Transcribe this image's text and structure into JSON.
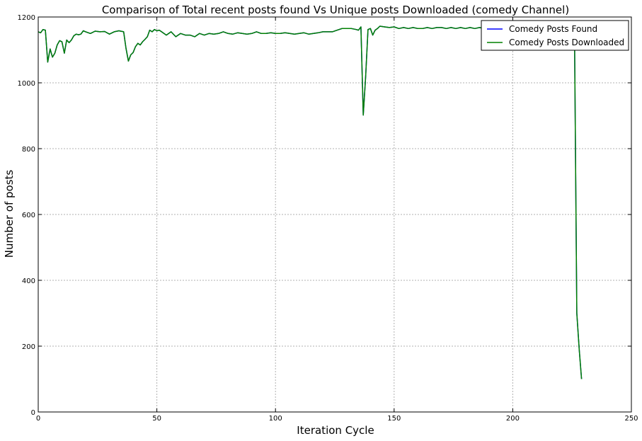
{
  "chart_data": {
    "type": "line",
    "title": "Comparison of Total recent posts found Vs Unique posts Downloaded (comedy Channel)",
    "xlabel": "Iteration Cycle",
    "ylabel": "Number of posts",
    "xlim": [
      0,
      250
    ],
    "ylim": [
      0,
      1200
    ],
    "xticks": [
      0,
      50,
      100,
      150,
      200,
      250
    ],
    "yticks": [
      0,
      200,
      400,
      600,
      800,
      1000,
      1200
    ],
    "grid": true,
    "legend_position": "top-right",
    "series": [
      {
        "name": "Comedy Posts Found",
        "color": "#0000ff",
        "x": [
          0,
          1,
          2,
          3,
          4,
          5,
          6,
          7,
          8,
          9,
          10,
          11,
          12,
          13,
          14,
          15,
          16,
          17,
          18,
          19,
          20,
          22,
          24,
          26,
          28,
          30,
          32,
          34,
          36,
          37,
          38,
          39,
          40,
          41,
          42,
          43,
          44,
          45,
          46,
          47,
          48,
          49,
          50,
          51,
          52,
          54,
          56,
          58,
          60,
          62,
          64,
          66,
          68,
          70,
          72,
          74,
          76,
          78,
          80,
          82,
          84,
          86,
          88,
          90,
          92,
          94,
          96,
          98,
          100,
          102,
          104,
          106,
          108,
          110,
          112,
          114,
          116,
          118,
          120,
          122,
          124,
          126,
          128,
          130,
          132,
          134,
          135,
          136,
          137,
          138,
          139,
          140,
          141,
          142,
          143,
          144,
          146,
          148,
          150,
          152,
          154,
          156,
          158,
          160,
          162,
          164,
          166,
          168,
          170,
          172,
          174,
          176,
          178,
          180,
          182,
          184,
          186,
          188,
          190,
          192,
          194,
          196,
          198,
          200,
          202,
          204,
          206,
          208,
          210,
          212,
          214,
          216,
          218,
          220,
          222,
          224,
          226,
          227,
          228,
          229
        ],
        "y": [
          1155,
          1152,
          1162,
          1160,
          1063,
          1103,
          1078,
          1090,
          1115,
          1128,
          1125,
          1090,
          1130,
          1122,
          1130,
          1143,
          1148,
          1146,
          1148,
          1158,
          1155,
          1150,
          1157,
          1155,
          1156,
          1148,
          1155,
          1158,
          1155,
          1105,
          1066,
          1085,
          1092,
          1110,
          1120,
          1115,
          1125,
          1132,
          1140,
          1160,
          1155,
          1162,
          1158,
          1160,
          1155,
          1145,
          1155,
          1140,
          1150,
          1145,
          1145,
          1140,
          1150,
          1145,
          1150,
          1148,
          1150,
          1155,
          1150,
          1148,
          1152,
          1150,
          1148,
          1150,
          1155,
          1150,
          1150,
          1152,
          1150,
          1150,
          1152,
          1150,
          1148,
          1150,
          1152,
          1148,
          1150,
          1152,
          1155,
          1155,
          1155,
          1160,
          1165,
          1165,
          1165,
          1162,
          1160,
          1170,
          902,
          1020,
          1162,
          1165,
          1145,
          1160,
          1165,
          1172,
          1170,
          1168,
          1170,
          1165,
          1168,
          1165,
          1168,
          1165,
          1165,
          1168,
          1165,
          1168,
          1168,
          1165,
          1168,
          1165,
          1168,
          1165,
          1168,
          1165,
          1168,
          1165,
          1168,
          1165,
          1168,
          1165,
          1168,
          1165,
          1168,
          1165,
          1168,
          1165,
          1168,
          1165,
          1168,
          1165,
          1168,
          1165,
          1168,
          1165,
          1165,
          300,
          190,
          100
        ]
      },
      {
        "name": "Comedy Posts Downloaded",
        "color": "#008000",
        "x": [
          0,
          1,
          2,
          3,
          4,
          5,
          6,
          7,
          8,
          9,
          10,
          11,
          12,
          13,
          14,
          15,
          16,
          17,
          18,
          19,
          20,
          22,
          24,
          26,
          28,
          30,
          32,
          34,
          36,
          37,
          38,
          39,
          40,
          41,
          42,
          43,
          44,
          45,
          46,
          47,
          48,
          49,
          50,
          51,
          52,
          54,
          56,
          58,
          60,
          62,
          64,
          66,
          68,
          70,
          72,
          74,
          76,
          78,
          80,
          82,
          84,
          86,
          88,
          90,
          92,
          94,
          96,
          98,
          100,
          102,
          104,
          106,
          108,
          110,
          112,
          114,
          116,
          118,
          120,
          122,
          124,
          126,
          128,
          130,
          132,
          134,
          135,
          136,
          137,
          138,
          139,
          140,
          141,
          142,
          143,
          144,
          146,
          148,
          150,
          152,
          154,
          156,
          158,
          160,
          162,
          164,
          166,
          168,
          170,
          172,
          174,
          176,
          178,
          180,
          182,
          184,
          186,
          188,
          190,
          192,
          194,
          196,
          198,
          200,
          202,
          204,
          206,
          208,
          210,
          212,
          214,
          216,
          218,
          220,
          222,
          224,
          226,
          227,
          228,
          229
        ],
        "y": [
          1155,
          1152,
          1162,
          1160,
          1063,
          1103,
          1078,
          1090,
          1115,
          1128,
          1125,
          1090,
          1130,
          1122,
          1130,
          1143,
          1148,
          1146,
          1148,
          1158,
          1155,
          1150,
          1157,
          1155,
          1156,
          1148,
          1155,
          1158,
          1155,
          1105,
          1066,
          1085,
          1092,
          1110,
          1120,
          1115,
          1125,
          1132,
          1140,
          1160,
          1155,
          1162,
          1158,
          1160,
          1155,
          1145,
          1155,
          1140,
          1150,
          1145,
          1145,
          1140,
          1150,
          1145,
          1150,
          1148,
          1150,
          1155,
          1150,
          1148,
          1152,
          1150,
          1148,
          1150,
          1155,
          1150,
          1150,
          1152,
          1150,
          1150,
          1152,
          1150,
          1148,
          1150,
          1152,
          1148,
          1150,
          1152,
          1155,
          1155,
          1155,
          1160,
          1165,
          1165,
          1165,
          1162,
          1160,
          1170,
          902,
          1020,
          1162,
          1165,
          1145,
          1160,
          1165,
          1172,
          1170,
          1168,
          1170,
          1165,
          1168,
          1165,
          1168,
          1165,
          1165,
          1168,
          1165,
          1168,
          1168,
          1165,
          1168,
          1165,
          1168,
          1165,
          1168,
          1165,
          1168,
          1165,
          1168,
          1165,
          1168,
          1165,
          1168,
          1165,
          1168,
          1165,
          1168,
          1165,
          1168,
          1165,
          1168,
          1165,
          1168,
          1165,
          1168,
          1165,
          1165,
          300,
          190,
          100
        ]
      }
    ]
  }
}
